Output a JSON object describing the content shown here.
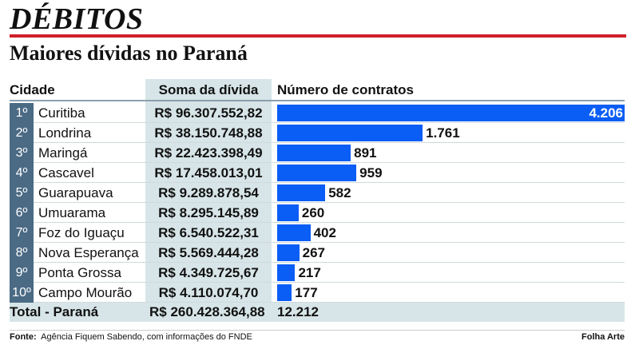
{
  "header": {
    "title": "DÉBITOS",
    "subtitle": "Maiores dívidas no Paraná"
  },
  "chart_data": {
    "type": "bar",
    "columns": [
      "Cidade",
      "Soma da dívida",
      "Número de contratos"
    ],
    "ranks": [
      "1º",
      "2º",
      "3º",
      "4º",
      "5º",
      "6º",
      "7º",
      "8º",
      "9º",
      "10º"
    ],
    "categories": [
      "Curitiba",
      "Londrina",
      "Maringá",
      "Cascavel",
      "Guarapuava",
      "Umuarama",
      "Foz do Iguaçu",
      "Nova Esperança",
      "Ponta Grossa",
      "Campo Mourão"
    ],
    "debts": [
      "R$ 96.307.552,82",
      "R$ 38.150.748,88",
      "R$ 22.423.398,49",
      "R$ 17.458.013,01",
      "R$ 9.289.878,54",
      "R$ 8.295.145,89",
      "R$ 6.540.522,31",
      "R$ 5.569.444,28",
      "R$ 4.349.725,67",
      "R$ 4.110.074,70"
    ],
    "values": [
      4206,
      1761,
      891,
      959,
      582,
      260,
      402,
      267,
      217,
      177
    ],
    "value_labels": [
      "4.206",
      "1.761",
      "891",
      "959",
      "582",
      "260",
      "402",
      "267",
      "217",
      "177"
    ],
    "bar_color": "#0a5df5",
    "total": {
      "label": "Total - Paraná",
      "debt": "R$ 260.428.364,88",
      "contracts": "12.212"
    }
  },
  "footer": {
    "source_label": "Fonte:",
    "source": "Agência Fiquem Sabendo, com informações do FNDE",
    "credit": "Folha Arte"
  }
}
